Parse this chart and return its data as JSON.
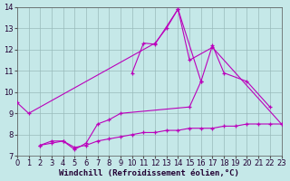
{
  "background_color": "#c5e8e8",
  "grid_color": "#99bbbb",
  "line_color": "#bb00bb",
  "xlabel": "Windchill (Refroidissement éolien,°C)",
  "xlabel_fontsize": 6.5,
  "tick_fontsize": 6,
  "xlim": [
    0,
    23
  ],
  "ylim": [
    7,
    14
  ],
  "yticks": [
    7,
    8,
    9,
    10,
    11,
    12,
    13,
    14
  ],
  "xticks": [
    0,
    1,
    2,
    3,
    4,
    5,
    6,
    7,
    8,
    9,
    10,
    11,
    12,
    13,
    14,
    15,
    16,
    17,
    18,
    19,
    20,
    21,
    22,
    23
  ],
  "series": [
    {
      "x": [
        0,
        1,
        12,
        13,
        14,
        15,
        17,
        23
      ],
      "y": [
        9.5,
        9.0,
        12.3,
        13.0,
        13.9,
        11.5,
        12.1,
        8.5
      ]
    },
    {
      "x": [
        10,
        11,
        12,
        14,
        16,
        17,
        18,
        20,
        22
      ],
      "y": [
        10.9,
        12.3,
        12.25,
        13.9,
        10.5,
        12.2,
        10.9,
        10.5,
        9.3
      ]
    },
    {
      "x": [
        2,
        3,
        4,
        5,
        6,
        7,
        8,
        9,
        15,
        16
      ],
      "y": [
        7.5,
        7.7,
        7.7,
        7.3,
        7.6,
        8.5,
        8.7,
        9.0,
        9.3,
        10.5
      ]
    },
    {
      "x": [
        2,
        3,
        4,
        5,
        6,
        7,
        8,
        9,
        10,
        11,
        12,
        13,
        14,
        15,
        16,
        17,
        18,
        19,
        20,
        21,
        22,
        23
      ],
      "y": [
        7.5,
        7.6,
        7.7,
        7.4,
        7.5,
        7.7,
        7.8,
        7.9,
        8.0,
        8.1,
        8.1,
        8.2,
        8.2,
        8.3,
        8.3,
        8.3,
        8.4,
        8.4,
        8.5,
        8.5,
        8.5,
        8.5
      ]
    }
  ]
}
